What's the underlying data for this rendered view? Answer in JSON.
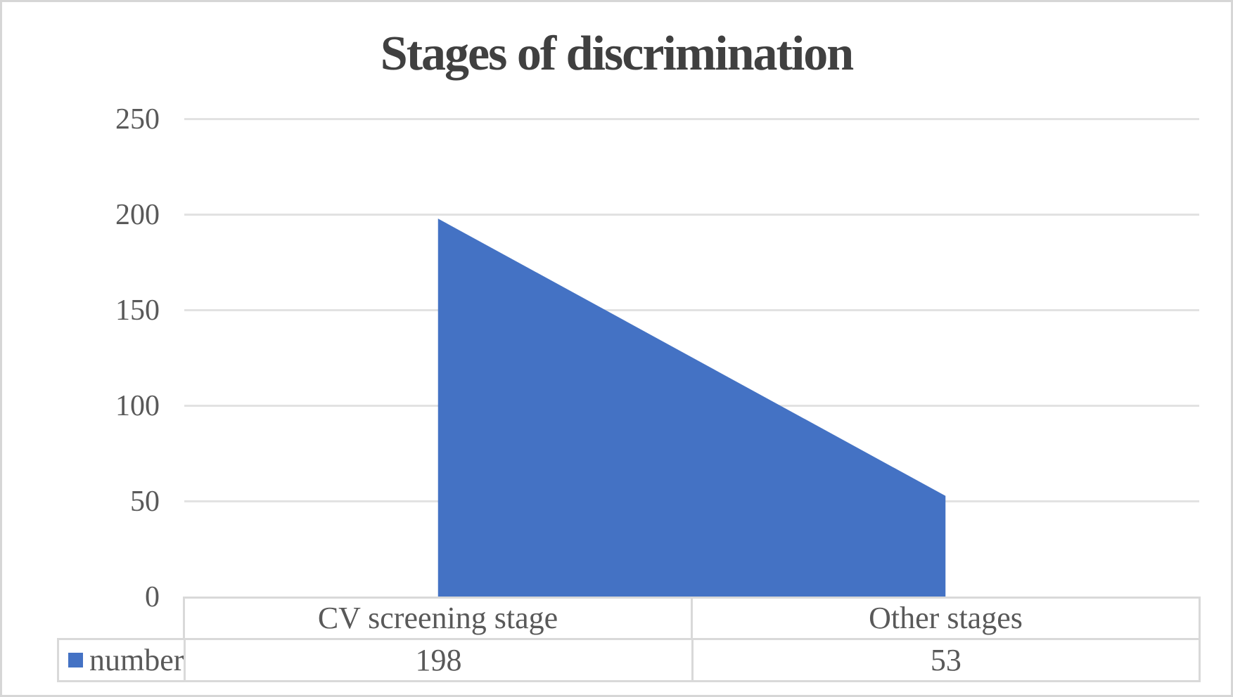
{
  "chart_data": {
    "type": "area",
    "title": "Stages of discrimination",
    "categories": [
      "CV screening stage",
      "Other stages"
    ],
    "series": [
      {
        "name": "number",
        "values": [
          198,
          53
        ]
      }
    ],
    "ylim": [
      0,
      250
    ],
    "yticks": [
      0,
      50,
      100,
      150,
      200,
      250
    ],
    "xlabel": "",
    "ylabel": "",
    "grid": "horizontal",
    "legend_position": "bottom-left-of-data-table",
    "data_table_shown": true,
    "colors": {
      "area_fill": "#4472C4",
      "title_text": "#404040",
      "axis_text": "#595959",
      "gridline": "#E2E2E2",
      "table_border": "#D9D9D9",
      "outer_border": "#D6D6D6",
      "background": "#FFFFFF"
    }
  }
}
